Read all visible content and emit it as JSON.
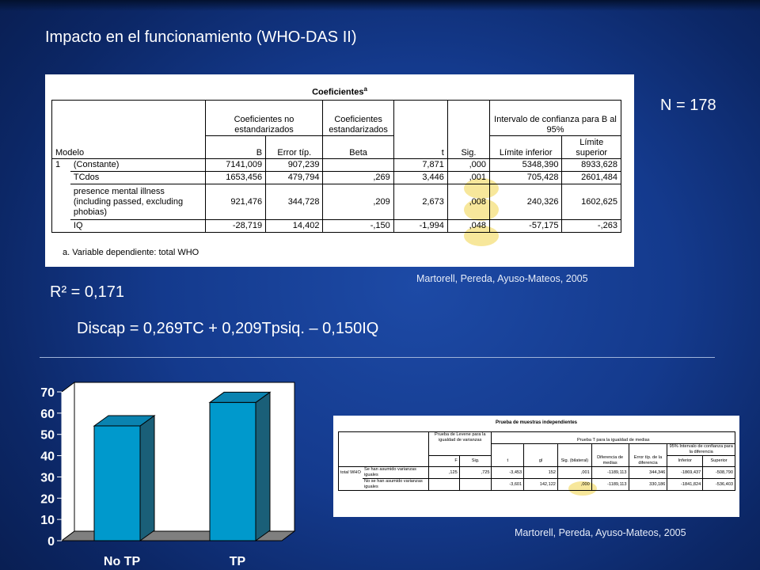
{
  "slide": {
    "title": "Impacto en el funcionamiento (WHO-DAS II)",
    "n_label": "N = 178",
    "r2_label": "R² = 0,171",
    "equation": "Discap = 0,269TC + 0,209Tpsiq. – 0,150IQ",
    "citation_top": "Martorell, Pereda, Ayuso-Mateos, 2005",
    "citation_bottom": "Martorell, Pereda, Ayuso-Mateos, 2005"
  },
  "coef_table": {
    "title": "Coeficientes",
    "title_sup": "a",
    "headers": {
      "unstd": "Coeficientes no estandarizados",
      "std": "Coeficientes estandarizados",
      "ci": "Intervalo de confianza para B al 95%",
      "modelo": "Modelo",
      "b": "B",
      "se": "Error típ.",
      "beta": "Beta",
      "t": "t",
      "sig": "Sig.",
      "lower": "Límite inferior",
      "upper": "Límite superior"
    },
    "model_num": "1",
    "rows": [
      {
        "name": "(Constante)",
        "b": "7141,009",
        "se": "907,239",
        "beta": "",
        "t": "7,871",
        "sig": ",000",
        "lower": "5348,390",
        "upper": "8933,628"
      },
      {
        "name": "TCdos",
        "b": "1653,456",
        "se": "479,794",
        "beta": ",269",
        "t": "3,446",
        "sig": ",001",
        "lower": "705,428",
        "upper": "2601,484"
      },
      {
        "name": "presence mental illness (including passed, excluding phobias)",
        "b": "921,476",
        "se": "344,728",
        "beta": ",209",
        "t": "2,673",
        "sig": ",008",
        "lower": "240,326",
        "upper": "1602,625"
      },
      {
        "name": "IQ",
        "b": "-28,719",
        "se": "14,402",
        "beta": "-,150",
        "t": "-1,994",
        "sig": ",048",
        "lower": "-57,175",
        "upper": "-,263"
      }
    ],
    "footnote": "a. Variable dependiente: total WHO"
  },
  "ttest_table": {
    "title": "Prueba de muestras independientes",
    "headers": {
      "levene": "Prueba de Levene para la igualdad de varianzas",
      "ttest": "Prueba T para la igualdad de medias",
      "ci": "95% Intervalo de confianza para la diferencia",
      "f": "F",
      "sig": "Sig.",
      "t": "t",
      "gl": "gl",
      "sig_bil": "Sig. (bilateral)",
      "diff": "Diferencia de medias",
      "se_diff": "Error típ. de la diferencia",
      "lower": "Inferior",
      "upper": "Superior"
    },
    "var_name": "total WHO",
    "rows": [
      {
        "label": "Se han asumido varianzas iguales",
        "f": ",125",
        "sig": ",725",
        "t": "-3,453",
        "gl": "152",
        "sig_bil": ",001",
        "diff": "-1189,113",
        "se_diff": "344,346",
        "lower": "-1869,437",
        "upper": "-508,790"
      },
      {
        "label": "No se han asumido varianzas iguales",
        "f": "",
        "sig": "",
        "t": "-3,601",
        "gl": "142,122",
        "sig_bil": ",000",
        "diff": "-1189,113",
        "se_diff": "330,186",
        "lower": "-1841,824",
        "upper": "-536,403"
      }
    ]
  },
  "chart_data": {
    "type": "bar",
    "categories": [
      "No TP",
      "TP"
    ],
    "values": [
      54,
      65
    ],
    "ylim": [
      0,
      70
    ],
    "yticks": [
      "0",
      "10",
      "20",
      "30",
      "40",
      "50",
      "60",
      "70"
    ],
    "grid": false,
    "colors": {
      "bar_front": "#0099cc",
      "bar_side": "#1a5f78",
      "bar_top": "#0a83b0",
      "floor": "#7f7f7f",
      "wall": "#ffffff"
    }
  }
}
